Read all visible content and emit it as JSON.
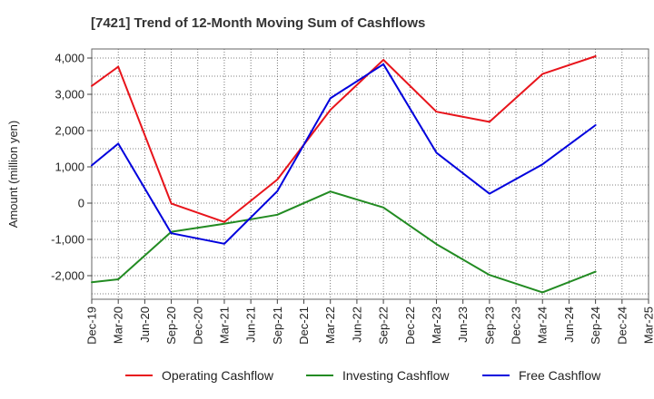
{
  "chart_data": {
    "type": "line",
    "title": "[7421]  Trend of 12-Month Moving Sum of Cashflows",
    "xlabel": "",
    "ylabel": "Amount (million yen)",
    "categories": [
      "Dec-19",
      "Mar-20",
      "Jun-20",
      "Sep-20",
      "Dec-20",
      "Mar-21",
      "Jun-21",
      "Sep-21",
      "Dec-21",
      "Mar-22",
      "Jun-22",
      "Sep-22",
      "Dec-22",
      "Mar-23",
      "Jun-23",
      "Sep-23",
      "Dec-23",
      "Mar-24",
      "Jun-24",
      "Sep-24",
      "Dec-24",
      "Mar-25"
    ],
    "yticks": [
      -2000,
      -1000,
      0,
      1000,
      2000,
      3000,
      4000
    ],
    "ytick_labels": [
      "-2,000",
      "-1,000",
      "0",
      "1,000",
      "2,000",
      "3,000",
      "4,000"
    ],
    "ylim": [
      -2650,
      4250
    ],
    "grid": true,
    "legend_position": "bottom",
    "series": [
      {
        "name": "Operating Cashflow",
        "color": "#e8141b",
        "points": [
          {
            "x": "Dec-19",
            "y": 3230
          },
          {
            "x": "Mar-20",
            "y": 3760
          },
          {
            "x": "Sep-20",
            "y": -10
          },
          {
            "x": "Mar-21",
            "y": -520
          },
          {
            "x": "Sep-21",
            "y": 650
          },
          {
            "x": "Mar-22",
            "y": 2570
          },
          {
            "x": "Sep-22",
            "y": 3950
          },
          {
            "x": "Mar-23",
            "y": 2520
          },
          {
            "x": "Sep-23",
            "y": 2240
          },
          {
            "x": "Mar-24",
            "y": 3560
          },
          {
            "x": "Sep-24",
            "y": 4050
          }
        ]
      },
      {
        "name": "Investing Cashflow",
        "color": "#228b22",
        "points": [
          {
            "x": "Dec-19",
            "y": -2180
          },
          {
            "x": "Mar-20",
            "y": -2100
          },
          {
            "x": "Sep-20",
            "y": -790
          },
          {
            "x": "Mar-21",
            "y": -570
          },
          {
            "x": "Sep-21",
            "y": -320
          },
          {
            "x": "Mar-22",
            "y": 320
          },
          {
            "x": "Sep-22",
            "y": -120
          },
          {
            "x": "Mar-23",
            "y": -1130
          },
          {
            "x": "Sep-23",
            "y": -1980
          },
          {
            "x": "Mar-24",
            "y": -2460
          },
          {
            "x": "Sep-24",
            "y": -1890
          }
        ]
      },
      {
        "name": "Free Cashflow",
        "color": "#0000dd",
        "points": [
          {
            "x": "Dec-19",
            "y": 1040
          },
          {
            "x": "Mar-20",
            "y": 1640
          },
          {
            "x": "Sep-20",
            "y": -830
          },
          {
            "x": "Mar-21",
            "y": -1120
          },
          {
            "x": "Sep-21",
            "y": 330
          },
          {
            "x": "Mar-22",
            "y": 2890
          },
          {
            "x": "Sep-22",
            "y": 3830
          },
          {
            "x": "Mar-23",
            "y": 1390
          },
          {
            "x": "Sep-23",
            "y": 260
          },
          {
            "x": "Mar-24",
            "y": 1070
          },
          {
            "x": "Sep-24",
            "y": 2150
          }
        ]
      }
    ]
  }
}
